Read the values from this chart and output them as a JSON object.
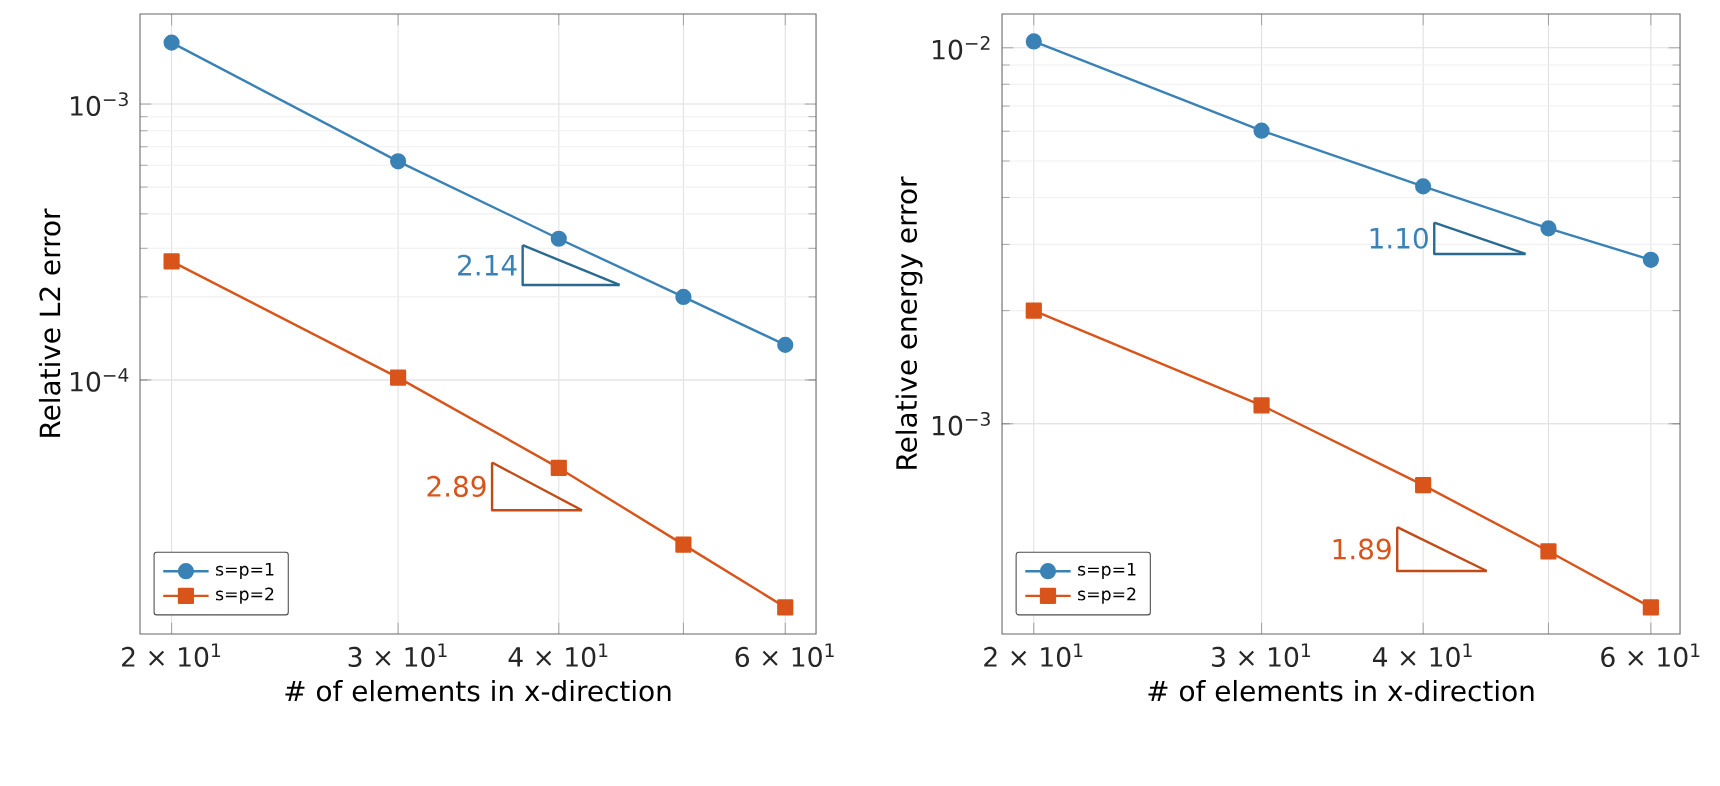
{
  "chart_data": [
    {
      "type": "line",
      "xlabel": "# of elements in x-direction",
      "ylabel": "Relative L2 error",
      "log": "xy",
      "grid": true,
      "legend": "bottom left",
      "x": [
        20,
        30,
        40,
        50,
        60
      ],
      "xlim": [
        18.9,
        63.4
      ],
      "ylim": [
        1.2e-05,
        0.00212
      ],
      "xticks": [
        {
          "value": 20,
          "label": "2 × 10$^{1}$"
        },
        {
          "value": 30,
          "label": "3 × 10$^{1}$"
        },
        {
          "value": 40,
          "label": "4 × 10$^{1}$"
        },
        {
          "value": 50,
          "label": null
        },
        {
          "value": 60,
          "label": "6 × 10$^{1}$"
        }
      ],
      "yticks": [
        {
          "value": 0.0001,
          "label": "10$^{−4}$"
        },
        {
          "value": 0.001,
          "label": "10$^{−3}$"
        }
      ],
      "series": [
        {
          "name": "s=p=1",
          "color": "#3a82b5",
          "marker": "circle",
          "values": [
            0.00167,
            0.00062,
            0.000325,
            0.0002,
            0.000134
          ]
        },
        {
          "name": "s=p=2",
          "color": "#d9541a",
          "marker": "square",
          "values": [
            0.000269,
            0.000102,
            4.8e-05,
            2.53e-05,
            1.5e-05
          ]
        },
        {
          "type": "line",
          "color": "#2a6a90",
          "marker": "none",
          "x": [
            37.5,
            37.5,
            44.6
          ],
          "values": [
            0.000308,
            0.000221,
            0.000221
          ]
        },
        {
          "type": "line",
          "color": "#c24a16",
          "marker": "none",
          "x": [
            35.5,
            35.5,
            41.7
          ],
          "values": [
            5.02e-05,
            3.37e-05,
            3.37e-05
          ]
        },
        {
          "type": "line",
          "color": "#2a6a90",
          "marker": "none",
          "x": [
            37.5,
            44.6
          ],
          "values": [
            0.000308,
            0.000221
          ]
        },
        {
          "type": "line",
          "color": "#c24a16",
          "marker": "none",
          "x": [
            35.5,
            41.7
          ],
          "values": [
            5.02e-05,
            3.37e-05
          ]
        }
      ],
      "annotations": [
        "2.14",
        "2.89"
      ]
    },
    {
      "type": "line",
      "xlabel": "# of elements in x-direction",
      "ylabel": "Relative energy error",
      "log": "xy",
      "grid": true,
      "legend": "bottom left",
      "x": [
        20,
        30,
        40,
        50,
        60
      ],
      "xlim": [
        18.9,
        63.2
      ],
      "ylim": [
        0.000276,
        0.0123
      ],
      "xticks": [
        {
          "value": 20,
          "label": "2 × 10$^{1}$"
        },
        {
          "value": 30,
          "label": "3 × 10$^{1}$"
        },
        {
          "value": 40,
          "label": "4 × 10$^{1}$"
        },
        {
          "value": 50,
          "label": null
        },
        {
          "value": 60,
          "label": "6 × 10$^{1}$"
        }
      ],
      "yticks": [
        {
          "value": 0.001,
          "label": "10$^{−3}$"
        },
        {
          "value": 0.01,
          "label": "10$^{−2}$"
        }
      ],
      "series": [
        {
          "name": "s=p=1",
          "color": "#3a82b5",
          "marker": "circle",
          "values": [
            0.0104,
            0.00602,
            0.00428,
            0.00331,
            0.00273
          ]
        },
        {
          "name": "s=p=2",
          "color": "#d9541a",
          "marker": "square",
          "values": [
            0.002,
            0.00112,
            0.000687,
            0.000458,
            0.000325
          ]
        },
        {
          "type": "line",
          "color": "#2a6a90",
          "marker": "none",
          "x": [
            40.8,
            40.8,
            48.0
          ],
          "values": [
            0.00343,
            0.00283,
            0.00283
          ]
        },
        {
          "type": "line",
          "color": "#c24a16",
          "marker": "none",
          "x": [
            38.2,
            38.2,
            44.8
          ],
          "values": [
            0.000531,
            0.000406,
            0.000406
          ]
        },
        {
          "type": "line",
          "color": "#2a6a90",
          "marker": "none",
          "x": [
            40.8,
            48.0
          ],
          "values": [
            0.00343,
            0.00283
          ]
        },
        {
          "type": "line",
          "color": "#c24a16",
          "marker": "none",
          "x": [
            38.2,
            44.8
          ],
          "values": [
            0.000531,
            0.000406
          ]
        }
      ],
      "annotations": [
        "1.10",
        "1.89"
      ]
    }
  ]
}
